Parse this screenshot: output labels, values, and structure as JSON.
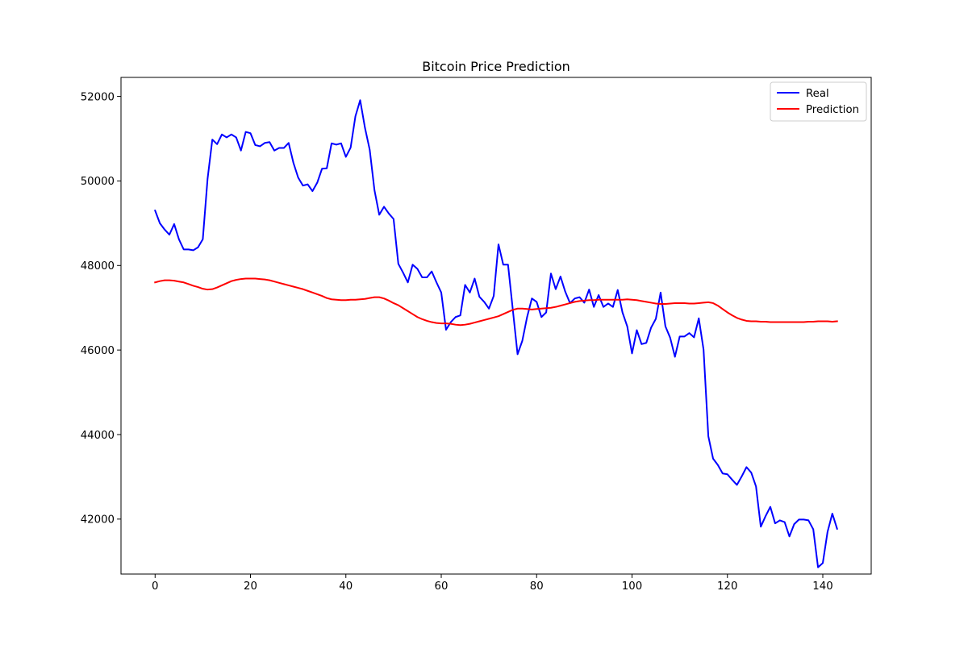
{
  "chart_data": {
    "type": "line",
    "title": "Bitcoin Price Prediction",
    "xlabel": "",
    "ylabel": "",
    "xlim": [
      -7.15,
      150.15
    ],
    "ylim": [
      40700,
      52450
    ],
    "x_ticks": [
      0,
      20,
      40,
      60,
      80,
      100,
      120,
      140
    ],
    "y_ticks": [
      42000,
      44000,
      46000,
      48000,
      50000,
      52000
    ],
    "grid": false,
    "legend_position": "top-right",
    "series": [
      {
        "name": "Real",
        "color": "#0000ff",
        "x_start": 0,
        "values": [
          49300,
          49000,
          48850,
          48730,
          48980,
          48620,
          48380,
          48380,
          48360,
          48430,
          48620,
          50050,
          50980,
          50870,
          51100,
          51030,
          51100,
          51030,
          50720,
          51160,
          51130,
          50850,
          50820,
          50900,
          50920,
          50720,
          50780,
          50780,
          50900,
          50430,
          50080,
          49890,
          49920,
          49760,
          49960,
          50290,
          50300,
          50890,
          50860,
          50890,
          50570,
          50790,
          51530,
          51910,
          51260,
          50740,
          49780,
          49200,
          49390,
          49230,
          49100,
          48040,
          47830,
          47600,
          48020,
          47920,
          47720,
          47720,
          47860,
          47600,
          47360,
          46480,
          46660,
          46780,
          46820,
          47540,
          47360,
          47690,
          47260,
          47140,
          46980,
          47280,
          48500,
          48020,
          48020,
          46960,
          45900,
          46220,
          46780,
          47220,
          47140,
          46780,
          46890,
          47810,
          47440,
          47740,
          47380,
          47110,
          47220,
          47250,
          47120,
          47430,
          47020,
          47300,
          47020,
          47100,
          47020,
          47420,
          46890,
          46560,
          45920,
          46470,
          46140,
          46170,
          46530,
          46740,
          47360,
          46560,
          46290,
          45840,
          46320,
          46320,
          46400,
          46300,
          46750,
          46010,
          43960,
          43430,
          43280,
          43080,
          43060,
          42930,
          42810,
          43010,
          43230,
          43100,
          42770,
          41820,
          42070,
          42290,
          41900,
          41970,
          41930,
          41590,
          41880,
          41990,
          41990,
          41970,
          41760,
          40860,
          40960,
          41700,
          42130,
          41770
        ]
      },
      {
        "name": "Prediction",
        "color": "#ff0000",
        "x_start": 0,
        "values": [
          47600,
          47630,
          47650,
          47650,
          47640,
          47620,
          47600,
          47560,
          47520,
          47490,
          47450,
          47430,
          47440,
          47480,
          47530,
          47580,
          47630,
          47660,
          47680,
          47690,
          47690,
          47690,
          47680,
          47670,
          47650,
          47620,
          47590,
          47560,
          47530,
          47500,
          47470,
          47440,
          47400,
          47360,
          47320,
          47280,
          47230,
          47200,
          47190,
          47180,
          47180,
          47190,
          47190,
          47200,
          47210,
          47230,
          47250,
          47250,
          47220,
          47170,
          47110,
          47060,
          46990,
          46920,
          46850,
          46780,
          46730,
          46690,
          46660,
          46640,
          46630,
          46630,
          46620,
          46600,
          46590,
          46600,
          46620,
          46650,
          46680,
          46710,
          46740,
          46770,
          46800,
          46850,
          46900,
          46950,
          46980,
          46980,
          46970,
          46960,
          46970,
          46980,
          46990,
          47000,
          47020,
          47050,
          47080,
          47110,
          47140,
          47160,
          47170,
          47180,
          47180,
          47190,
          47190,
          47190,
          47190,
          47190,
          47190,
          47200,
          47190,
          47180,
          47160,
          47140,
          47120,
          47100,
          47090,
          47090,
          47100,
          47110,
          47110,
          47110,
          47100,
          47100,
          47110,
          47120,
          47130,
          47110,
          47050,
          46970,
          46890,
          46820,
          46760,
          46720,
          46690,
          46680,
          46680,
          46670,
          46670,
          46660,
          46660,
          46660,
          46660,
          46660,
          46660,
          46660,
          46660,
          46670,
          46670,
          46680,
          46680,
          46680,
          46670,
          46680
        ]
      }
    ]
  }
}
